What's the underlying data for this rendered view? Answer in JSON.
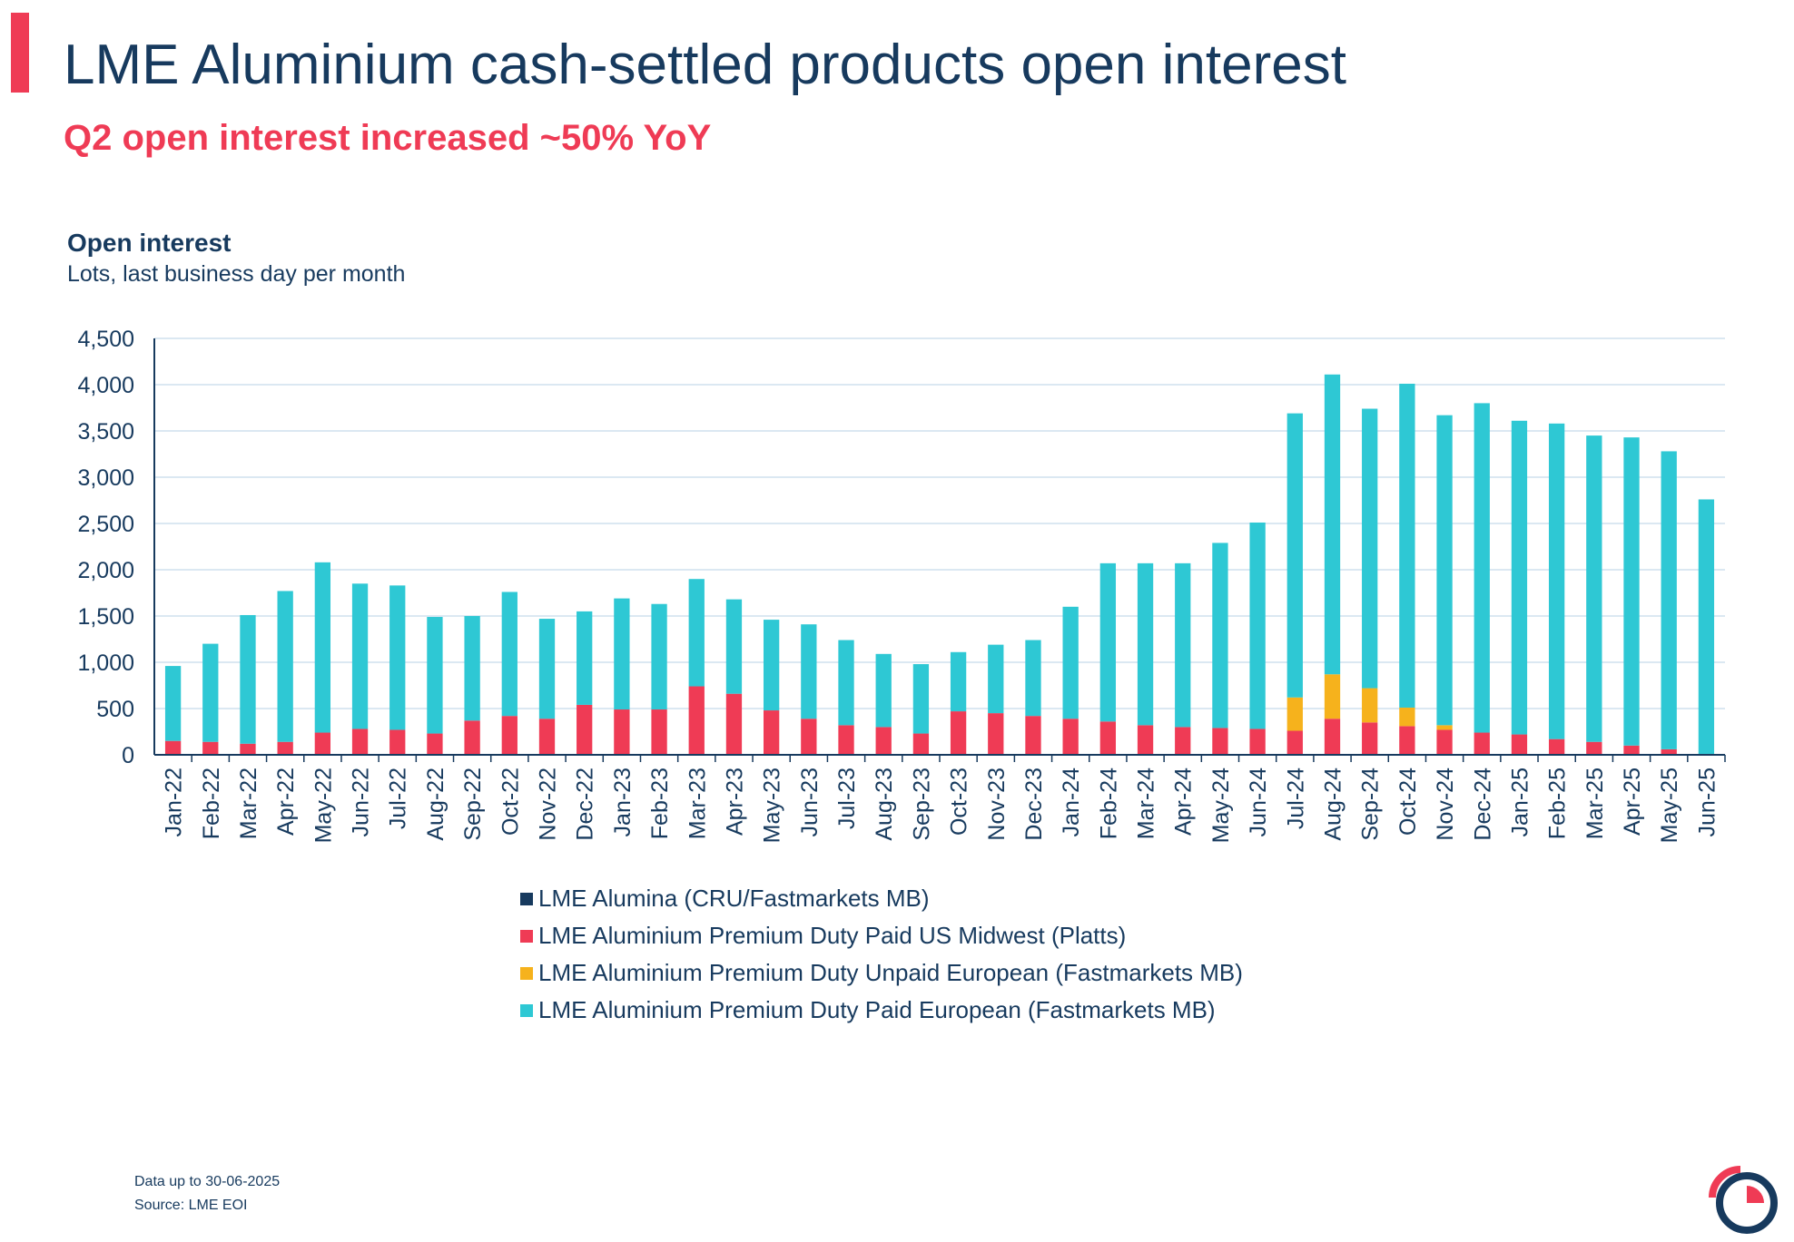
{
  "header": {
    "title": "LME Aluminium cash-settled products open interest",
    "subtitle": "Q2 open interest increased ~50% YoY"
  },
  "colors": {
    "navy": "#173a5e",
    "red": "#ef3b55",
    "teal": "#2ec8d4",
    "amber": "#f6b21c",
    "grid": "#cfe0ee"
  },
  "chart_heading": "Open interest",
  "chart_subheading": "Lots, last business day per month",
  "chart_data": {
    "type": "bar",
    "stacked": true,
    "ylim": [
      0,
      4500
    ],
    "yticks": [
      "0",
      "500",
      "1,000",
      "1,500",
      "2,000",
      "2,500",
      "3,000",
      "3,500",
      "4,000",
      "4,500"
    ],
    "grid": "horizontal",
    "legend_position": "bottom",
    "categories": [
      "Jan-22",
      "Feb-22",
      "Mar-22",
      "Apr-22",
      "May-22",
      "Jun-22",
      "Jul-22",
      "Aug-22",
      "Sep-22",
      "Oct-22",
      "Nov-22",
      "Dec-22",
      "Jan-23",
      "Feb-23",
      "Mar-23",
      "Apr-23",
      "May-23",
      "Jun-23",
      "Jul-23",
      "Aug-23",
      "Sep-23",
      "Oct-23",
      "Nov-23",
      "Dec-23",
      "Jan-24",
      "Feb-24",
      "Mar-24",
      "Apr-24",
      "May-24",
      "Jun-24",
      "Jul-24",
      "Aug-24",
      "Sep-24",
      "Oct-24",
      "Nov-24",
      "Dec-24",
      "Jan-25",
      "Feb-25",
      "Mar-25",
      "Apr-25",
      "May-25",
      "Jun-25"
    ],
    "series": [
      {
        "name": "LME Alumina (CRU/Fastmarkets MB)",
        "color": "#173a5e",
        "values": [
          0,
          0,
          0,
          0,
          0,
          0,
          0,
          0,
          0,
          0,
          0,
          0,
          0,
          0,
          0,
          0,
          0,
          0,
          0,
          0,
          0,
          0,
          0,
          0,
          0,
          0,
          0,
          0,
          0,
          0,
          0,
          0,
          0,
          0,
          0,
          0,
          0,
          0,
          0,
          0,
          0,
          0
        ]
      },
      {
        "name": "LME Aluminium Premium Duty Paid US Midwest (Platts)",
        "color": "#ef3b55",
        "values": [
          150,
          140,
          120,
          140,
          240,
          280,
          270,
          230,
          370,
          420,
          390,
          540,
          490,
          490,
          740,
          660,
          480,
          390,
          320,
          300,
          230,
          470,
          450,
          420,
          390,
          360,
          320,
          300,
          290,
          280,
          260,
          390,
          350,
          310,
          270,
          240,
          220,
          170,
          140,
          100,
          60,
          10
        ]
      },
      {
        "name": "LME Aluminium Premium Duty Unpaid European (Fastmarkets MB)",
        "color": "#f6b21c",
        "values": [
          0,
          0,
          0,
          0,
          0,
          0,
          0,
          0,
          0,
          0,
          0,
          0,
          0,
          0,
          0,
          0,
          0,
          0,
          0,
          0,
          0,
          0,
          0,
          0,
          0,
          0,
          0,
          0,
          0,
          0,
          360,
          480,
          370,
          200,
          50,
          0,
          0,
          0,
          0,
          0,
          0,
          0
        ]
      },
      {
        "name": "LME Aluminium Premium Duty Paid European (Fastmarkets MB)",
        "color": "#2ec8d4",
        "values": [
          810,
          1060,
          1390,
          1630,
          1840,
          1570,
          1560,
          1260,
          1130,
          1340,
          1080,
          1010,
          1200,
          1140,
          1160,
          1020,
          980,
          1020,
          920,
          790,
          750,
          640,
          740,
          820,
          1210,
          1710,
          1750,
          1770,
          2000,
          2230,
          3070,
          3240,
          3020,
          3500,
          3350,
          3560,
          3390,
          3410,
          3310,
          3330,
          3220,
          2750
        ]
      }
    ]
  },
  "footer": {
    "line1": "Data up to 30-06-2025",
    "line2": "Source: LME EOI"
  }
}
